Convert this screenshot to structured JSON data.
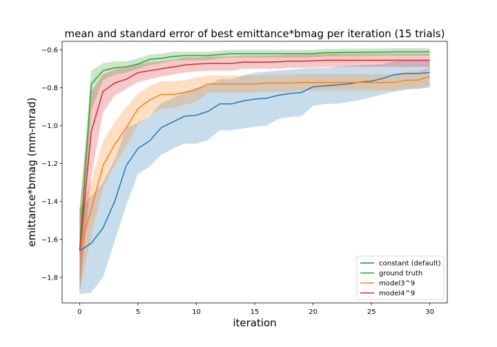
{
  "chart_data": {
    "type": "line",
    "title": "mean and standard error of best emittance*bmag per iteration (15 trials)",
    "xlabel": "iteration",
    "ylabel": "emittance*bmag (mm-mrad)",
    "xlim": [
      -1.5,
      31.5
    ],
    "ylim": [
      -1.935,
      -0.555
    ],
    "xticks": [
      0,
      5,
      10,
      15,
      20,
      25,
      30
    ],
    "yticks": [
      -1.8,
      -1.6,
      -1.4,
      -1.2,
      -1.0,
      -0.8,
      -0.6
    ],
    "xtick_labels": [
      "0",
      "5",
      "10",
      "15",
      "20",
      "25",
      "30"
    ],
    "ytick_labels": [
      "−1.8",
      "−1.6",
      "−1.4",
      "−1.2",
      "−1.0",
      "−0.8",
      "−0.6"
    ],
    "grid": false,
    "legend_position": "lower-right",
    "x": [
      0,
      1,
      2,
      3,
      4,
      5,
      6,
      7,
      8,
      9,
      10,
      11,
      12,
      13,
      14,
      15,
      16,
      17,
      18,
      19,
      20,
      21,
      22,
      23,
      24,
      25,
      26,
      27,
      28,
      29,
      30
    ],
    "series": [
      {
        "name": "constant (default)",
        "color": "#1f77b4",
        "values": [
          -1.66,
          -1.62,
          -1.54,
          -1.4,
          -1.21,
          -1.12,
          -1.08,
          -1.01,
          -0.98,
          -0.95,
          -0.945,
          -0.925,
          -0.885,
          -0.885,
          -0.87,
          -0.86,
          -0.855,
          -0.84,
          -0.83,
          -0.825,
          -0.795,
          -0.79,
          -0.785,
          -0.78,
          -0.77,
          -0.765,
          -0.75,
          -0.73,
          -0.725,
          -0.725,
          -0.72
        ],
        "lower": [
          -1.89,
          -1.88,
          -1.8,
          -1.61,
          -1.42,
          -1.255,
          -1.215,
          -1.155,
          -1.12,
          -1.095,
          -1.095,
          -1.075,
          -1.025,
          -1.025,
          -1.015,
          -1.005,
          -1.0,
          -0.965,
          -0.955,
          -0.95,
          -0.895,
          -0.885,
          -0.885,
          -0.875,
          -0.865,
          -0.85,
          -0.835,
          -0.82,
          -0.81,
          -0.805,
          -0.8
        ],
        "upper": [
          -1.44,
          -1.37,
          -1.3,
          -1.18,
          -1.01,
          -0.985,
          -0.95,
          -0.88,
          -0.855,
          -0.82,
          -0.8,
          -0.785,
          -0.755,
          -0.755,
          -0.735,
          -0.72,
          -0.715,
          -0.71,
          -0.705,
          -0.7,
          -0.695,
          -0.695,
          -0.69,
          -0.685,
          -0.68,
          -0.68,
          -0.675,
          -0.66,
          -0.655,
          -0.655,
          -0.65
        ]
      },
      {
        "name": "ground truth",
        "color": "#2ca02c",
        "values": [
          -1.66,
          -0.78,
          -0.71,
          -0.695,
          -0.69,
          -0.675,
          -0.65,
          -0.645,
          -0.635,
          -0.63,
          -0.63,
          -0.63,
          -0.625,
          -0.62,
          -0.62,
          -0.62,
          -0.62,
          -0.62,
          -0.62,
          -0.62,
          -0.62,
          -0.615,
          -0.615,
          -0.613,
          -0.613,
          -0.612,
          -0.612,
          -0.611,
          -0.611,
          -0.611,
          -0.611
        ],
        "lower": [
          -1.88,
          -0.92,
          -0.76,
          -0.73,
          -0.72,
          -0.7,
          -0.68,
          -0.67,
          -0.655,
          -0.655,
          -0.655,
          -0.655,
          -0.645,
          -0.64,
          -0.64,
          -0.64,
          -0.64,
          -0.64,
          -0.64,
          -0.64,
          -0.64,
          -0.635,
          -0.635,
          -0.633,
          -0.633,
          -0.632,
          -0.632,
          -0.631,
          -0.631,
          -0.631,
          -0.631
        ],
        "upper": [
          -1.44,
          -0.71,
          -0.67,
          -0.66,
          -0.66,
          -0.645,
          -0.625,
          -0.62,
          -0.61,
          -0.61,
          -0.61,
          -0.61,
          -0.605,
          -0.6,
          -0.6,
          -0.6,
          -0.6,
          -0.6,
          -0.6,
          -0.6,
          -0.6,
          -0.595,
          -0.595,
          -0.593,
          -0.593,
          -0.592,
          -0.592,
          -0.591,
          -0.591,
          -0.591,
          -0.591
        ]
      },
      {
        "name": "model3^9",
        "color": "#ff7f0e",
        "values": [
          -1.66,
          -1.44,
          -1.21,
          -1.1,
          -1.01,
          -0.91,
          -0.865,
          -0.835,
          -0.835,
          -0.825,
          -0.81,
          -0.78,
          -0.78,
          -0.78,
          -0.78,
          -0.78,
          -0.775,
          -0.775,
          -0.775,
          -0.772,
          -0.772,
          -0.772,
          -0.772,
          -0.772,
          -0.772,
          -0.772,
          -0.772,
          -0.772,
          -0.76,
          -0.76,
          -0.74
        ],
        "lower": [
          -1.88,
          -1.58,
          -1.33,
          -1.21,
          -1.11,
          -0.995,
          -0.945,
          -0.91,
          -0.905,
          -0.89,
          -0.875,
          -0.825,
          -0.825,
          -0.825,
          -0.825,
          -0.825,
          -0.82,
          -0.82,
          -0.82,
          -0.815,
          -0.815,
          -0.815,
          -0.815,
          -0.815,
          -0.815,
          -0.815,
          -0.815,
          -0.815,
          -0.805,
          -0.805,
          -0.79
        ],
        "upper": [
          -1.44,
          -1.29,
          -1.08,
          -0.98,
          -0.9,
          -0.83,
          -0.79,
          -0.765,
          -0.765,
          -0.76,
          -0.745,
          -0.735,
          -0.735,
          -0.735,
          -0.735,
          -0.735,
          -0.73,
          -0.73,
          -0.73,
          -0.728,
          -0.728,
          -0.728,
          -0.728,
          -0.728,
          -0.728,
          -0.728,
          -0.728,
          -0.728,
          -0.715,
          -0.715,
          -0.69
        ]
      },
      {
        "name": "model4^9",
        "color": "#d62728",
        "values": [
          -1.66,
          -1.03,
          -0.82,
          -0.775,
          -0.755,
          -0.72,
          -0.71,
          -0.7,
          -0.69,
          -0.68,
          -0.675,
          -0.672,
          -0.672,
          -0.672,
          -0.665,
          -0.665,
          -0.665,
          -0.663,
          -0.66,
          -0.66,
          -0.658,
          -0.655,
          -0.655,
          -0.655,
          -0.655,
          -0.655,
          -0.655,
          -0.655,
          -0.655,
          -0.655,
          -0.655
        ],
        "lower": [
          -1.88,
          -1.27,
          -0.93,
          -0.84,
          -0.805,
          -0.77,
          -0.755,
          -0.74,
          -0.73,
          -0.72,
          -0.715,
          -0.71,
          -0.71,
          -0.71,
          -0.7,
          -0.7,
          -0.7,
          -0.7,
          -0.695,
          -0.695,
          -0.693,
          -0.69,
          -0.69,
          -0.69,
          -0.69,
          -0.69,
          -0.69,
          -0.69,
          -0.69,
          -0.69,
          -0.69
        ],
        "upper": [
          -1.44,
          -0.82,
          -0.73,
          -0.705,
          -0.695,
          -0.675,
          -0.665,
          -0.66,
          -0.65,
          -0.64,
          -0.64,
          -0.635,
          -0.635,
          -0.635,
          -0.63,
          -0.63,
          -0.63,
          -0.628,
          -0.625,
          -0.625,
          -0.623,
          -0.62,
          -0.62,
          -0.62,
          -0.62,
          -0.62,
          -0.62,
          -0.62,
          -0.62,
          -0.62,
          -0.62
        ]
      }
    ]
  }
}
